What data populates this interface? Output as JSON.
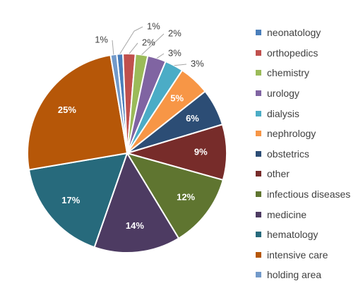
{
  "chart_data": {
    "type": "pie",
    "title": "",
    "start_angle_deg": -6,
    "direction": "clockwise",
    "legend_position": "right",
    "slices": [
      {
        "label": "neonatology",
        "value": 1,
        "display": "1%",
        "color": "#4a7ebb"
      },
      {
        "label": "orthopedics",
        "value": 2,
        "display": "2%",
        "color": "#c0504d"
      },
      {
        "label": "chemistry",
        "value": 2,
        "display": "2%",
        "color": "#9bbb59"
      },
      {
        "label": "urology",
        "value": 3,
        "display": "3%",
        "color": "#8064a2"
      },
      {
        "label": "dialysis",
        "value": 3,
        "display": "3%",
        "color": "#4bacc6"
      },
      {
        "label": "nephrology",
        "value": 5,
        "display": "5%",
        "color": "#f79646"
      },
      {
        "label": "obstetrics",
        "value": 6,
        "display": "6%",
        "color": "#2c4d75"
      },
      {
        "label": "other",
        "value": 9,
        "display": "9%",
        "color": "#772c2a"
      },
      {
        "label": "infectious diseases",
        "value": 12,
        "display": "12%",
        "color": "#5f7530"
      },
      {
        "label": "medicine",
        "value": 14,
        "display": "14%",
        "color": "#4d3b62"
      },
      {
        "label": "hematology",
        "value": 17,
        "display": "17%",
        "color": "#276a7c"
      },
      {
        "label": "intensive care",
        "value": 25,
        "display": "25%",
        "color": "#b65708"
      },
      {
        "label": "holding area",
        "value": 1,
        "display": "1%",
        "color": "#729aca"
      }
    ]
  }
}
